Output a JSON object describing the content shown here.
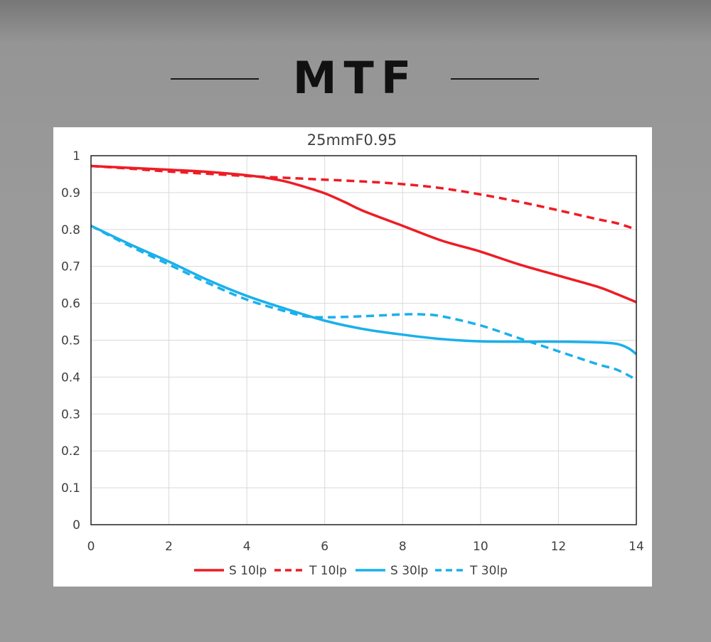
{
  "header": {
    "title": "MTF"
  },
  "chart_data": {
    "type": "line",
    "title": "25mmF0.95",
    "xlabel": "",
    "ylabel": "",
    "xlim": [
      0,
      14
    ],
    "ylim": [
      0,
      1
    ],
    "x_ticks": [
      "0",
      "2",
      "4",
      "6",
      "8",
      "10",
      "12",
      "14"
    ],
    "y_ticks": [
      "0",
      "0.1",
      "0.2",
      "0.3",
      "0.4",
      "0.5",
      "0.6",
      "0.7",
      "0.8",
      "0.9",
      "1"
    ],
    "grid": true,
    "legend_position": "bottom",
    "series": [
      {
        "name": "S 10lp",
        "color": "#ee1c25",
        "dashed": false,
        "x": [
          0,
          1,
          2,
          3,
          4,
          4.5,
          5,
          5.5,
          6,
          6.5,
          7,
          8,
          9,
          10,
          11,
          12,
          13,
          13.5,
          14
        ],
        "y": [
          0.972,
          0.967,
          0.962,
          0.956,
          0.947,
          0.94,
          0.93,
          0.915,
          0.898,
          0.875,
          0.85,
          0.81,
          0.77,
          0.74,
          0.705,
          0.675,
          0.645,
          0.625,
          0.603
        ]
      },
      {
        "name": "T 10lp",
        "color": "#ee1c25",
        "dashed": true,
        "x": [
          0,
          1,
          2,
          3,
          4,
          5,
          6,
          7,
          8,
          9,
          10,
          11,
          12,
          13,
          13.5,
          14
        ],
        "y": [
          0.972,
          0.965,
          0.957,
          0.951,
          0.945,
          0.94,
          0.935,
          0.93,
          0.923,
          0.912,
          0.895,
          0.875,
          0.852,
          0.828,
          0.817,
          0.8
        ]
      },
      {
        "name": "S 30lp",
        "color": "#1ab0ec",
        "dashed": false,
        "x": [
          0,
          1,
          2,
          3,
          4,
          5,
          6,
          7,
          8,
          9,
          10,
          11,
          12,
          13,
          13.5,
          13.8,
          14
        ],
        "y": [
          0.81,
          0.76,
          0.713,
          0.663,
          0.62,
          0.585,
          0.553,
          0.53,
          0.515,
          0.503,
          0.497,
          0.496,
          0.496,
          0.494,
          0.49,
          0.478,
          0.462
        ]
      },
      {
        "name": "T 30lp",
        "color": "#1ab0ec",
        "dashed": true,
        "x": [
          0,
          1,
          2,
          3,
          4,
          5,
          5.5,
          6,
          7,
          8,
          8.5,
          9,
          10,
          11,
          12,
          13,
          13.5,
          14
        ],
        "y": [
          0.81,
          0.755,
          0.705,
          0.655,
          0.61,
          0.578,
          0.565,
          0.562,
          0.565,
          0.57,
          0.57,
          0.565,
          0.54,
          0.505,
          0.47,
          0.435,
          0.42,
          0.393
        ]
      }
    ]
  }
}
